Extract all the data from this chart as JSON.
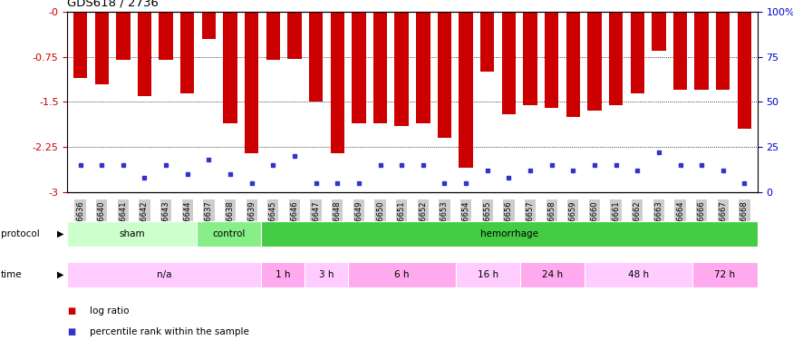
{
  "title": "GDS618 / 2736",
  "samples": [
    "GSM16636",
    "GSM16640",
    "GSM16641",
    "GSM16642",
    "GSM16643",
    "GSM16644",
    "GSM16637",
    "GSM16638",
    "GSM16639",
    "GSM16645",
    "GSM16646",
    "GSM16647",
    "GSM16648",
    "GSM16649",
    "GSM16650",
    "GSM16651",
    "GSM16652",
    "GSM16653",
    "GSM16654",
    "GSM16655",
    "GSM16656",
    "GSM16657",
    "GSM16658",
    "GSM16659",
    "GSM16660",
    "GSM16661",
    "GSM16662",
    "GSM16663",
    "GSM16664",
    "GSM16666",
    "GSM16667",
    "GSM16668"
  ],
  "log_ratio": [
    -1.1,
    -1.2,
    -0.8,
    -1.4,
    -0.8,
    -1.35,
    -0.45,
    -1.85,
    -2.35,
    -0.8,
    -0.78,
    -1.5,
    -2.35,
    -1.85,
    -1.85,
    -1.9,
    -1.85,
    -2.1,
    -2.6,
    -1.0,
    -1.7,
    -1.55,
    -1.6,
    -1.75,
    -1.65,
    -1.55,
    -1.35,
    -0.65,
    -1.3,
    -1.3,
    -1.3,
    -1.95
  ],
  "percentile": [
    15,
    15,
    15,
    8,
    15,
    10,
    18,
    10,
    5,
    15,
    20,
    5,
    5,
    5,
    15,
    15,
    15,
    5,
    5,
    12,
    8,
    12,
    15,
    12,
    15,
    15,
    12,
    22,
    15,
    15,
    12,
    5
  ],
  "bar_color": "#cc0000",
  "dot_color": "#3333cc",
  "ylim_left": [
    -3.0,
    0.0
  ],
  "yticks_left": [
    0.0,
    -0.75,
    -1.5,
    -2.25,
    -3.0
  ],
  "ytick_labels_left": [
    "-0",
    "-0.75",
    "-1.5",
    "-2.25",
    "-3"
  ],
  "ylim_right": [
    0,
    100
  ],
  "yticks_right": [
    0,
    25,
    50,
    75,
    100
  ],
  "ytick_labels_right": [
    "0",
    "25",
    "50",
    "75",
    "100%"
  ],
  "protocol_groups": [
    {
      "label": "sham",
      "start": 0,
      "end": 5,
      "color": "#ccffcc"
    },
    {
      "label": "control",
      "start": 6,
      "end": 8,
      "color": "#88ee88"
    },
    {
      "label": "hemorrhage",
      "start": 9,
      "end": 31,
      "color": "#44cc44"
    }
  ],
  "time_groups": [
    {
      "label": "n/a",
      "start": 0,
      "end": 8,
      "color": "#ffccff"
    },
    {
      "label": "1 h",
      "start": 9,
      "end": 10,
      "color": "#ffaaee"
    },
    {
      "label": "3 h",
      "start": 11,
      "end": 12,
      "color": "#ffccff"
    },
    {
      "label": "6 h",
      "start": 13,
      "end": 17,
      "color": "#ffaaee"
    },
    {
      "label": "16 h",
      "start": 18,
      "end": 20,
      "color": "#ffccff"
    },
    {
      "label": "24 h",
      "start": 21,
      "end": 23,
      "color": "#ffaaee"
    },
    {
      "label": "48 h",
      "start": 24,
      "end": 28,
      "color": "#ffccff"
    },
    {
      "label": "72 h",
      "start": 29,
      "end": 31,
      "color": "#ffaaee"
    }
  ],
  "legend_items": [
    {
      "label": "log ratio",
      "color": "#cc0000"
    },
    {
      "label": "percentile rank within the sample",
      "color": "#3333cc"
    }
  ],
  "xlabel_bg": "#cccccc",
  "axis_label_color_left": "#cc0000",
  "axis_label_color_right": "#0000cc"
}
